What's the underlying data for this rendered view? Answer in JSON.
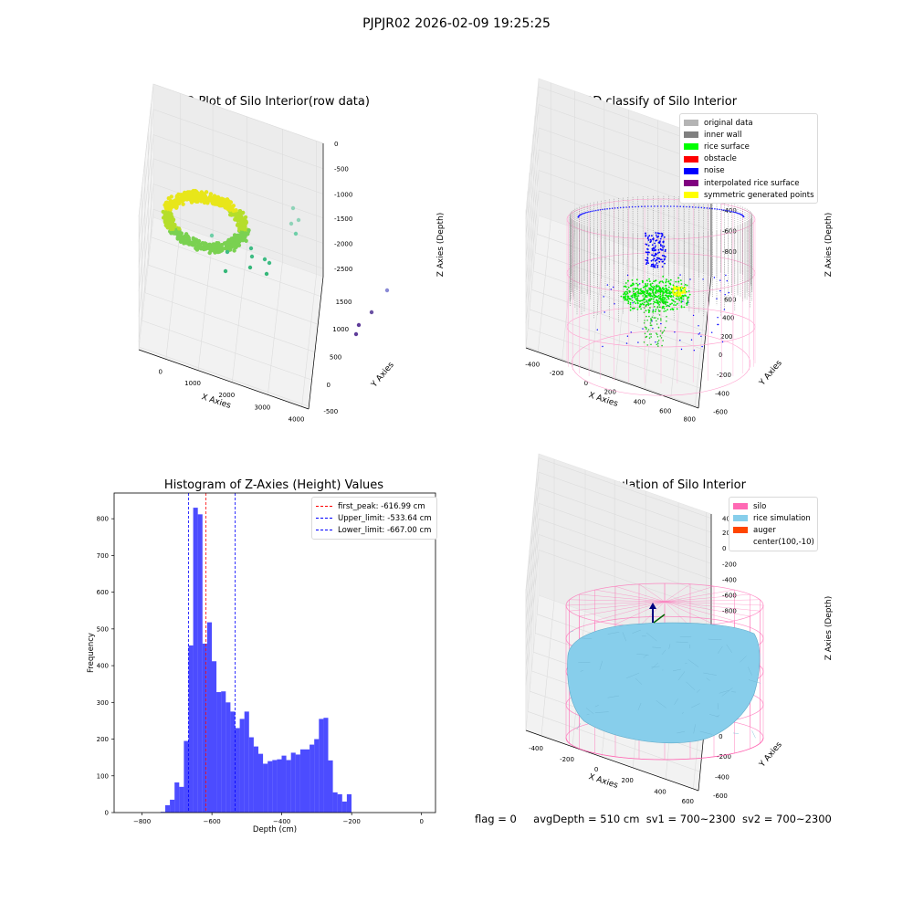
{
  "suptitle": "PJPJR02 2026-02-09 19:25:25",
  "panels": {
    "raw": {
      "title": "3D Plot of Silo Interior(row data)",
      "xlabel": "X Axies",
      "ylabel": "Y Axies",
      "zlabel": "Z Axies (Depth)",
      "xticks": [
        "0",
        "1000",
        "2000",
        "3000",
        "4000"
      ],
      "yticks": [
        "-500",
        "0",
        "500",
        "1000",
        "1500"
      ],
      "zticks": [
        "0",
        "-500",
        "-1000",
        "-1500",
        "-2000",
        "-2500"
      ]
    },
    "classify": {
      "title": "3D classify of Silo Interior",
      "xlabel": "X Axies",
      "ylabel": "Y Axies",
      "zlabel": "Z Axies (Depth)",
      "xticks": [
        "-400",
        "-200",
        "0",
        "200",
        "400",
        "600",
        "800"
      ],
      "yticks": [
        "-600",
        "-400",
        "-200",
        "0",
        "200",
        "400",
        "600"
      ],
      "zticks": [
        "200",
        "0",
        "-200",
        "-400",
        "-600",
        "-800"
      ],
      "legend": [
        {
          "label": "original data",
          "color": "#b4b4b4"
        },
        {
          "label": "inner wall",
          "color": "#808080"
        },
        {
          "label": "rice surface",
          "color": "#00ff00"
        },
        {
          "label": "obstacle",
          "color": "#ff0000"
        },
        {
          "label": "noise",
          "color": "#0000ff"
        },
        {
          "label": "interpolated rice surface",
          "color": "#800080"
        },
        {
          "label": "symmetric generated points",
          "color": "#ffff00"
        }
      ]
    },
    "simulation": {
      "title": "3D simulation of Silo Interior",
      "xlabel": "X Axies",
      "ylabel": "Y Axies",
      "zlabel": "Z Axies (Depth)",
      "xticks": [
        "-400",
        "-200",
        "0",
        "200",
        "400",
        "600"
      ],
      "yticks": [
        "-600",
        "-400",
        "-200",
        "0",
        "200",
        "400",
        "600"
      ],
      "zticks": [
        "400",
        "200",
        "0",
        "-200",
        "-400",
        "-600",
        "-800"
      ],
      "legend": [
        {
          "label": "silo",
          "color": "#ff69b4"
        },
        {
          "label": "rice simulation",
          "color": "#87ceeb"
        },
        {
          "label": "auger",
          "color": "#ff4500"
        },
        {
          "label": "center(100,-10)",
          "color": ""
        }
      ]
    }
  },
  "footer": {
    "flag": "flag = 0",
    "avg": "avgDepth = 510 cm",
    "sv1": "sv1 = 700~2300",
    "sv2": "sv2 = 700~2300"
  },
  "chart_data": [
    {
      "type": "scatter",
      "title": "3D Plot of Silo Interior(row data)",
      "xlabel": "X Axies",
      "ylabel": "Y Axies",
      "zlabel": "Z Axies (Depth)",
      "xlim": [
        -400,
        4000
      ],
      "ylim": [
        -600,
        1500
      ],
      "zlim": [
        -2700,
        100
      ],
      "colormap": "viridis by depth"
    },
    {
      "type": "scatter",
      "title": "3D classify of Silo Interior",
      "xlim": [
        -500,
        800
      ],
      "ylim": [
        -700,
        700
      ],
      "zlim": [
        -950,
        300
      ],
      "legend": "top-right"
    },
    {
      "type": "bar",
      "title": "Histogram of Z-Axies (Height) Values",
      "xlabel": "Depth (cm)",
      "ylabel": "Frequency",
      "xlim": [
        -880,
        40
      ],
      "ylim": [
        0,
        870
      ],
      "xticks": [
        -800,
        -600,
        -400,
        -200,
        0
      ],
      "yticks": [
        0,
        100,
        200,
        300,
        400,
        500,
        600,
        700,
        800
      ],
      "bin_width": 13.33,
      "bins_start": -747,
      "values": [
        2,
        20,
        35,
        82,
        70,
        195,
        455,
        830,
        812,
        460,
        518,
        412,
        328,
        330,
        300,
        275,
        230,
        255,
        275,
        205,
        180,
        160,
        133,
        140,
        143,
        145,
        155,
        143,
        163,
        158,
        172,
        172,
        185,
        200,
        255,
        258,
        142,
        55,
        50,
        30,
        50
      ],
      "color": "#0000ff",
      "lines": [
        {
          "label": "first_peak: -616.99 cm",
          "x": -616.99,
          "color": "#ff0000"
        },
        {
          "label": "Upper_limit: -533.64 cm",
          "x": -533.64,
          "color": "#0000ff"
        },
        {
          "label": "Lower_limit: -667.00 cm",
          "x": -667.0,
          "color": "#0000ff"
        }
      ],
      "legend": "top-right"
    },
    {
      "type": "scatter",
      "title": "3D simulation of Silo Interior",
      "xlim": [
        -500,
        700
      ],
      "ylim": [
        -700,
        700
      ],
      "zlim": [
        -950,
        450
      ],
      "legend": "top-right"
    }
  ]
}
